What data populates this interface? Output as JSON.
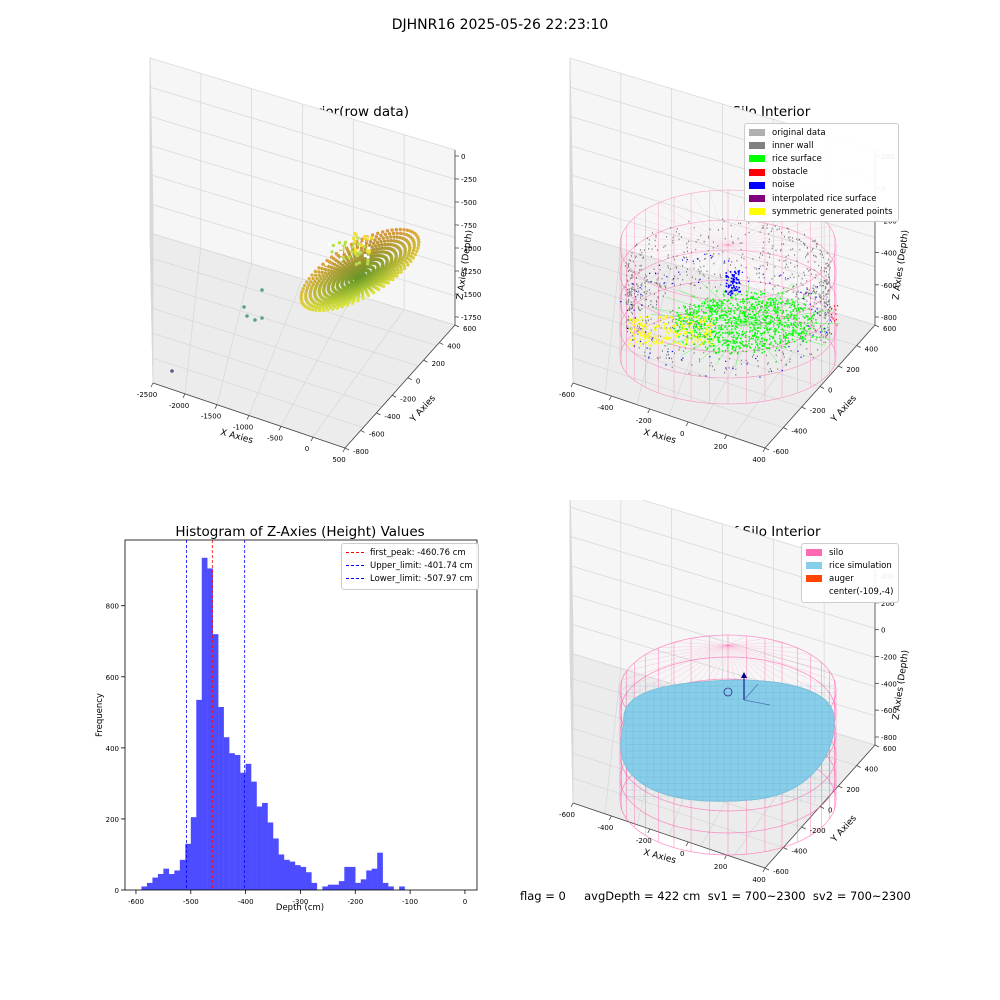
{
  "figure_title": "DJHNR16 2025-05-26 22:23:10",
  "status_line": "flag = 0     avgDepth = 422 cm  sv1 = 700~2300  sv2 = 700~2300",
  "colors": {
    "original": "#b0b0b0",
    "inner_wall": "#808080",
    "rice_surface": "#00ff00",
    "obstacle": "#ff0000",
    "noise": "#0000ff",
    "interpolated": "#800080",
    "symmetric": "#ffff00",
    "silo": "#ff69b4",
    "rice_sim": "#87ceeb",
    "auger": "#ff4500",
    "hist_bar": "#4d4dff"
  },
  "chart_data": [
    {
      "type": "scatter3d",
      "title": "3D Plot of Silo Interior(row data)",
      "xlabel": "X Axies",
      "ylabel": "Y Axies",
      "zlabel": "Z Axies (Depth)",
      "x_ticks": [
        "-2500",
        "-2000",
        "-1500",
        "-1000",
        "-500",
        "0",
        "500"
      ],
      "y_ticks": [
        "-800",
        "-600",
        "-400",
        "-200",
        "0",
        "200",
        "400",
        "600"
      ],
      "z_ticks": [
        "0",
        "-250",
        "-500",
        "-750",
        "-1000",
        "-1250",
        "-1500",
        "-1750"
      ]
    },
    {
      "type": "scatter3d",
      "title": "3D classify of Silo Interior",
      "xlabel": "X Axies",
      "ylabel": "Y Axies",
      "zlabel": "Z Axies (Depth)",
      "x_ticks": [
        "-600",
        "-400",
        "-200",
        "0",
        "200",
        "400"
      ],
      "y_ticks": [
        "-600",
        "-400",
        "-200",
        "0",
        "200",
        "400",
        "600"
      ],
      "z_ticks": [
        "200",
        "0",
        "-200",
        "-400",
        "-600",
        "-800"
      ],
      "legend": [
        {
          "label": "original data",
          "color": "#b0b0b0"
        },
        {
          "label": "inner wall",
          "color": "#808080"
        },
        {
          "label": "rice surface",
          "color": "#00ff00"
        },
        {
          "label": "obstacle",
          "color": "#ff0000"
        },
        {
          "label": "noise",
          "color": "#0000ff"
        },
        {
          "label": "interpolated rice surface",
          "color": "#800080"
        },
        {
          "label": "symmetric generated points",
          "color": "#ffff00"
        }
      ]
    },
    {
      "type": "bar",
      "title": "Histogram of Z-Axies (Height) Values",
      "xlabel": "Depth (cm)",
      "ylabel": "Frequency",
      "xlim": [
        -620,
        22
      ],
      "ylim": [
        0,
        985
      ],
      "x_ticks": [
        -600,
        -500,
        -400,
        -300,
        -200,
        -100,
        0
      ],
      "y_ticks": [
        0,
        200,
        400,
        600,
        800
      ],
      "bin_start": -590,
      "bin_width": 10,
      "values": [
        10,
        20,
        35,
        45,
        60,
        45,
        55,
        85,
        130,
        205,
        535,
        935,
        905,
        720,
        515,
        430,
        385,
        380,
        330,
        355,
        305,
        235,
        245,
        190,
        145,
        100,
        85,
        80,
        70,
        65,
        50,
        20,
        0,
        10,
        15,
        15,
        25,
        65,
        65,
        20,
        30,
        55,
        60,
        105,
        20,
        10,
        0,
        10
      ],
      "vlines": [
        {
          "label": "first_peak: -460.76 cm",
          "x": -460.76,
          "color": "#ff0000"
        },
        {
          "label": "Upper_limit: -401.74 cm",
          "x": -401.74,
          "color": "#0000ff"
        },
        {
          "label": "Lower_limit: -507.97 cm",
          "x": -507.97,
          "color": "#0000ff"
        }
      ]
    },
    {
      "type": "surface3d",
      "title": "3D simulation of Silo Interior",
      "xlabel": "X Axies",
      "ylabel": "Y Axies",
      "zlabel": "Z Axies (Depth)",
      "x_ticks": [
        "-600",
        "-400",
        "-200",
        "0",
        "200",
        "400"
      ],
      "y_ticks": [
        "-600",
        "-400",
        "-200",
        "0",
        "200",
        "400",
        "600"
      ],
      "z_ticks": [
        "400",
        "200",
        "0",
        "-200",
        "-400",
        "-600",
        "-800"
      ],
      "legend": [
        {
          "label": "silo",
          "color": "#ff69b4"
        },
        {
          "label": "rice simulation",
          "color": "#87ceeb"
        },
        {
          "label": "auger",
          "color": "#ff4500"
        },
        {
          "label": "center(-109,-4)",
          "color": ""
        }
      ]
    }
  ]
}
